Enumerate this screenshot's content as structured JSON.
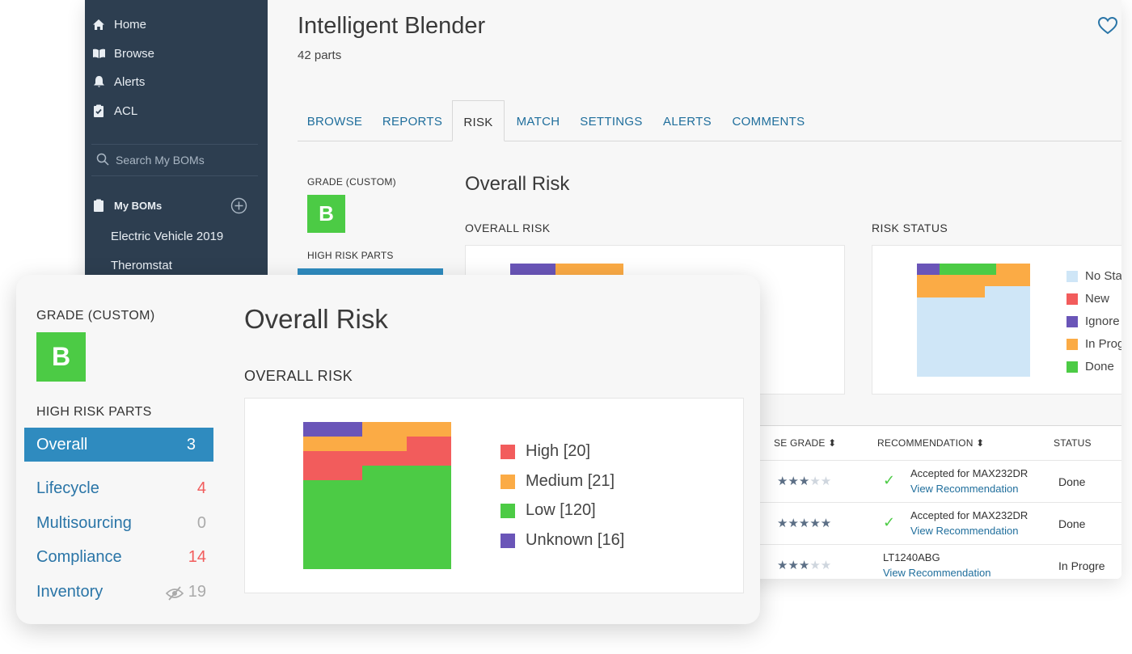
{
  "sidebar": {
    "nav": [
      {
        "label": "Home",
        "icon": "home-icon"
      },
      {
        "label": "Browse",
        "icon": "book-icon"
      },
      {
        "label": "Alerts",
        "icon": "bell-icon"
      },
      {
        "label": "ACL",
        "icon": "clipboard-check-icon"
      }
    ],
    "search_placeholder": "Search My BOMs",
    "my_boms_label": "My BOMs",
    "boms": [
      "Electric Vehicle 2019",
      "Theromstat"
    ]
  },
  "header": {
    "title": "Intelligent Blender",
    "parts_count": "42 parts"
  },
  "tabs": [
    "BROWSE",
    "REPORTS",
    "RISK",
    "MATCH",
    "SETTINGS",
    "ALERTS",
    "COMMENTS"
  ],
  "active_tab": "RISK",
  "grade": {
    "label": "GRADE (CUSTOM)",
    "value": "B",
    "color": "#4ccb45"
  },
  "high_risk_parts": {
    "label": "HIGH RISK PARTS",
    "items": [
      {
        "label": "Overall",
        "count": "3",
        "selected": true
      },
      {
        "label": "Lifecycle",
        "count": "4",
        "tone": "red"
      },
      {
        "label": "Multisourcing",
        "count": "0",
        "tone": "gray"
      },
      {
        "label": "Compliance",
        "count": "14",
        "tone": "red"
      },
      {
        "label": "Inventory",
        "count": "19",
        "tone": "gray",
        "icon": "eye-slash-icon"
      }
    ]
  },
  "overall_risk": {
    "title": "Overall Risk",
    "chart_label": "OVERALL RISK",
    "legend": [
      "High [20]",
      "Medium [21]",
      "Low [120]",
      "Unknown [16]"
    ]
  },
  "risk_status": {
    "label": "RISK STATUS",
    "legend": [
      "No Sta",
      "New",
      "Ignore",
      "In Prog",
      "Done"
    ]
  },
  "chart_data": [
    {
      "type": "waffle",
      "title": "OVERALL RISK",
      "categories": [
        "High",
        "Medium",
        "Low",
        "Unknown"
      ],
      "values": [
        20,
        21,
        120,
        16
      ],
      "colors": [
        "#f25c5c",
        "#fbab45",
        "#4ccb45",
        "#6a55b8"
      ]
    },
    {
      "type": "waffle",
      "title": "RISK STATUS",
      "categories": [
        "No Sta",
        "New",
        "Ignore",
        "In Prog",
        "Done"
      ],
      "colors": [
        "#cfe6f7",
        "#f25c5c",
        "#6a55b8",
        "#fbab45",
        "#4ccb45"
      ]
    }
  ],
  "table": {
    "headers": [
      "SE GRADE",
      "RECOMMENDATION",
      "STATUS"
    ],
    "rows": [
      {
        "stars": 3,
        "checked": true,
        "rec_title": "Accepted for MAX232DR",
        "rec_link": "View Recommendation",
        "status": "Done"
      },
      {
        "stars": 5,
        "checked": true,
        "rec_title": "Accepted for MAX232DR",
        "rec_link": "View Recommendation",
        "status": "Done"
      },
      {
        "stars": 3,
        "checked": false,
        "rec_title": "LT1240ABG",
        "rec_link": "View Recommendation",
        "status": "In Progre"
      }
    ]
  },
  "colors": {
    "sidebar_bg": "#2d3e50",
    "link": "#2a75a7",
    "selected_bg": "#2f8bbf"
  }
}
